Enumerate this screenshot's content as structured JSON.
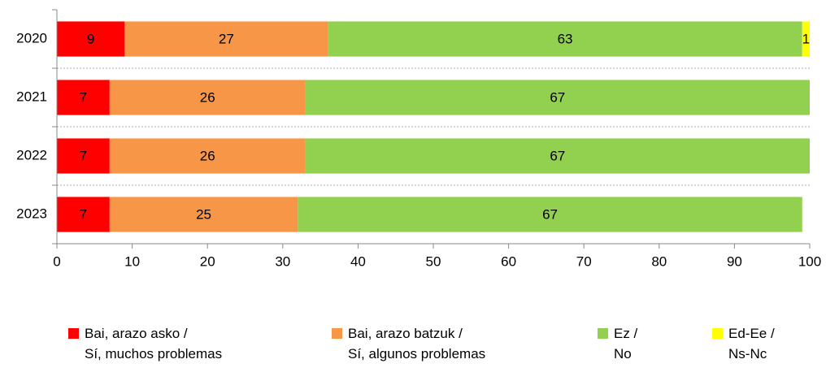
{
  "chart_data": {
    "type": "stacked_barh",
    "categories": [
      "2020",
      "2021",
      "2022",
      "2023"
    ],
    "series": [
      {
        "name": "Bai, arazo asko /\nSí, muchos problemas",
        "color": "#ff0000",
        "values": [
          9,
          7,
          7,
          7
        ]
      },
      {
        "name": "Bai, arazo batzuk /\nSí, algunos problemas",
        "color": "#f79646",
        "values": [
          27,
          26,
          26,
          25
        ]
      },
      {
        "name": "Ez /\nNo",
        "color": "#92d050",
        "values": [
          63,
          67,
          67,
          67
        ]
      },
      {
        "name": "Ed-Ee /\nNs-Nc",
        "color": "#ffff00",
        "values": [
          1,
          null,
          null,
          null
        ]
      }
    ],
    "xlim": [
      0,
      100
    ],
    "xticks": [
      0,
      10,
      20,
      30,
      40,
      50,
      60,
      70,
      80,
      90,
      100
    ],
    "legend": "bottom"
  }
}
